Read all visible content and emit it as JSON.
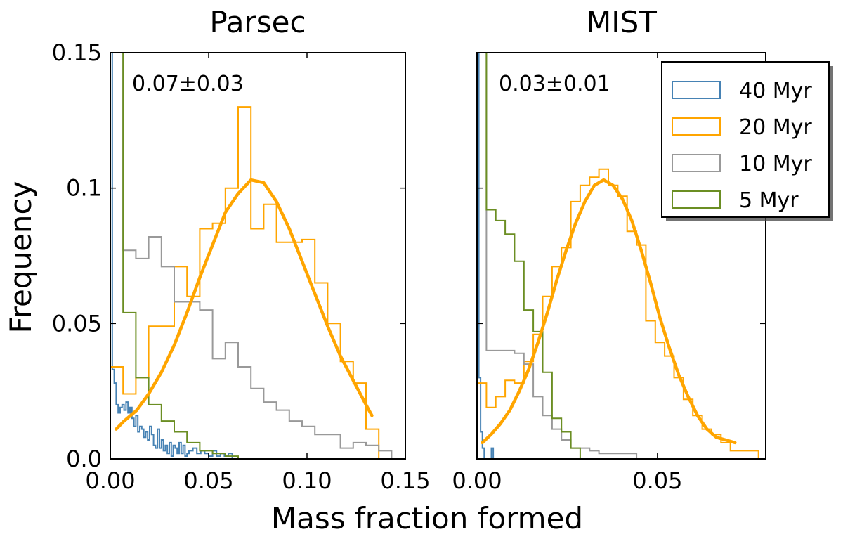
{
  "figure": {
    "ylabel": "Frequency",
    "xlabel": "Mass fraction formed"
  },
  "legend": {
    "placement": "top-right",
    "entries": [
      {
        "label": "40 Myr",
        "color": "#4682b4"
      },
      {
        "label": "20 Myr",
        "color": "#ffa500"
      },
      {
        "label": "10 Myr",
        "color": "#999999"
      },
      {
        "label": "5 Myr",
        "color": "#6b8e23"
      }
    ]
  },
  "chart_data": [
    {
      "type": "histogram",
      "title": "Parsec",
      "annotation": "0.07±0.03",
      "xlim": [
        0.0,
        0.15
      ],
      "ylim": [
        0.0,
        0.15
      ],
      "xticks": [
        0.0,
        0.05,
        0.1,
        0.15
      ],
      "xtick_labels": [
        "0.00",
        "0.05",
        "0.10",
        "0.15"
      ],
      "yticks": [
        0.0,
        0.05,
        0.1,
        0.15
      ],
      "ytick_labels": [
        "0.0",
        "0.05",
        "0.1",
        "0.15"
      ],
      "series": [
        {
          "name": "40 Myr",
          "color": "#4682b4",
          "edges": [
            0.0,
            0.001,
            0.002,
            0.003,
            0.004,
            0.005,
            0.006,
            0.007,
            0.008,
            0.009,
            0.01,
            0.011,
            0.012,
            0.013,
            0.014,
            0.015,
            0.016,
            0.017,
            0.018,
            0.019,
            0.02,
            0.021,
            0.022,
            0.023,
            0.024,
            0.025,
            0.026,
            0.027,
            0.028,
            0.029,
            0.03,
            0.031,
            0.032,
            0.033,
            0.034,
            0.035,
            0.036,
            0.037,
            0.038,
            0.039,
            0.04,
            0.042,
            0.044,
            0.046,
            0.048,
            0.05,
            0.052,
            0.054,
            0.056,
            0.058,
            0.06,
            0.062
          ],
          "values": [
            0.15,
            0.033,
            0.028,
            0.02,
            0.017,
            0.019,
            0.02,
            0.018,
            0.021,
            0.017,
            0.019,
            0.015,
            0.012,
            0.016,
            0.01,
            0.012,
            0.011,
            0.008,
            0.01,
            0.007,
            0.012,
            0.009,
            0.005,
            0.004,
            0.011,
            0.004,
            0.007,
            0.003,
            0.005,
            0.002,
            0.006,
            0.001,
            0.005,
            0.004,
            0.002,
            0.006,
            0.002,
            0.005,
            0.001,
            0.002,
            0.003,
            0.004,
            0.002,
            0.003,
            0.002,
            0.001,
            0.003,
            0.001,
            0.002,
            0.001,
            0.002
          ]
        },
        {
          "name": "20 Myr",
          "color": "#ffa500",
          "edges": [
            0.0,
            0.0065,
            0.013,
            0.0195,
            0.026,
            0.0325,
            0.039,
            0.0455,
            0.052,
            0.0585,
            0.065,
            0.0715,
            0.078,
            0.0845,
            0.091,
            0.0975,
            0.104,
            0.1105,
            0.117,
            0.1235,
            0.13,
            0.1365,
            0.143
          ],
          "values": [
            0.034,
            0.024,
            0.03,
            0.049,
            0.049,
            0.071,
            0.06,
            0.085,
            0.087,
            0.1,
            0.13,
            0.085,
            0.094,
            0.08,
            0.08,
            0.081,
            0.065,
            0.05,
            0.036,
            0.028,
            0.011,
            0.0
          ]
        },
        {
          "name": "10 Myr",
          "color": "#999999",
          "edges": [
            0.0,
            0.0065,
            0.013,
            0.0195,
            0.026,
            0.0325,
            0.039,
            0.0455,
            0.052,
            0.0585,
            0.065,
            0.0715,
            0.078,
            0.0845,
            0.091,
            0.0975,
            0.104,
            0.1105,
            0.117,
            0.1235,
            0.13,
            0.1365,
            0.143
          ],
          "values": [
            0.15,
            0.077,
            0.074,
            0.082,
            0.071,
            0.058,
            0.058,
            0.055,
            0.037,
            0.043,
            0.034,
            0.026,
            0.021,
            0.018,
            0.014,
            0.012,
            0.009,
            0.009,
            0.004,
            0.006,
            0.005,
            0.003
          ]
        },
        {
          "name": "5 Myr",
          "color": "#6b8e23",
          "edges": [
            0.0,
            0.003,
            0.006,
            0.0065,
            0.013,
            0.0195,
            0.026,
            0.0325,
            0.039,
            0.0455,
            0.052,
            0.0585,
            0.065
          ],
          "values": [
            0.15,
            0.15,
            0.15,
            0.054,
            0.03,
            0.02,
            0.014,
            0.01,
            0.006,
            0.003,
            0.002,
            0.001
          ]
        }
      ],
      "fit": {
        "name": "20 Myr fit",
        "color": "#ffa500",
        "x": [
          0.003,
          0.007,
          0.0135,
          0.0195,
          0.026,
          0.0325,
          0.039,
          0.0455,
          0.052,
          0.0585,
          0.065,
          0.0715,
          0.078,
          0.0845,
          0.091,
          0.0975,
          0.104,
          0.1105,
          0.117,
          0.1235,
          0.13,
          0.133
        ],
        "y": [
          0.011,
          0.014,
          0.018,
          0.024,
          0.032,
          0.042,
          0.054,
          0.067,
          0.079,
          0.091,
          0.098,
          0.103,
          0.102,
          0.095,
          0.085,
          0.073,
          0.061,
          0.049,
          0.038,
          0.029,
          0.02,
          0.016
        ]
      }
    },
    {
      "type": "histogram",
      "title": "MIST",
      "annotation": "0.03±0.01",
      "xlim": [
        0.0,
        0.08
      ],
      "ylim": [
        0.0,
        0.15
      ],
      "xticks": [
        0.0,
        0.05
      ],
      "xtick_labels": [
        "0.00",
        "0.05"
      ],
      "yticks": [
        0.0,
        0.05,
        0.1,
        0.15
      ],
      "ytick_labels": [
        "",
        "",
        "",
        ""
      ],
      "series": [
        {
          "name": "40 Myr",
          "color": "#4682b4",
          "edges": [
            0.0,
            0.0005,
            0.001,
            0.0015,
            0.002,
            0.004,
            0.0045
          ],
          "values": [
            0.15,
            0.03,
            0.01,
            0.004,
            0.0,
            0.004
          ]
        },
        {
          "name": "20 Myr",
          "color": "#ffa500",
          "edges": [
            0.0,
            0.0026,
            0.0052,
            0.0078,
            0.0104,
            0.013,
            0.0156,
            0.0182,
            0.0208,
            0.0234,
            0.026,
            0.0286,
            0.0312,
            0.0338,
            0.0364,
            0.039,
            0.0416,
            0.0442,
            0.0468,
            0.0494,
            0.052,
            0.0546,
            0.0572,
            0.0598,
            0.0624,
            0.065,
            0.0676,
            0.0702,
            0.0728,
            0.0754,
            0.078
          ],
          "values": [
            0.028,
            0.019,
            0.023,
            0.029,
            0.028,
            0.036,
            0.046,
            0.06,
            0.071,
            0.078,
            0.095,
            0.101,
            0.104,
            0.107,
            0.101,
            0.097,
            0.084,
            0.079,
            0.051,
            0.043,
            0.038,
            0.03,
            0.022,
            0.016,
            0.011,
            0.009,
            0.006,
            0.003,
            0.003,
            0.003
          ]
        },
        {
          "name": "10 Myr",
          "color": "#999999",
          "edges": [
            0.0,
            0.0026,
            0.0052,
            0.0078,
            0.0104,
            0.013,
            0.0156,
            0.0182,
            0.0208,
            0.0234,
            0.026,
            0.0286,
            0.0312,
            0.0338,
            0.0364,
            0.039,
            0.0416,
            0.0442,
            0.0468
          ],
          "values": [
            0.15,
            0.04,
            0.04,
            0.04,
            0.039,
            0.035,
            0.023,
            0.016,
            0.011,
            0.007,
            0.004,
            0.004,
            0.003,
            0.002,
            0.002,
            0.002,
            0.002,
            0.0
          ]
        },
        {
          "name": "5 Myr",
          "color": "#6b8e23",
          "edges": [
            0.0,
            0.0026,
            0.0052,
            0.0078,
            0.0104,
            0.013,
            0.0156,
            0.0182,
            0.0208,
            0.0234,
            0.026,
            0.0286
          ],
          "values": [
            0.15,
            0.092,
            0.088,
            0.083,
            0.073,
            0.055,
            0.047,
            0.032,
            0.015,
            0.01,
            0.004
          ]
        }
      ],
      "fit": {
        "name": "20 Myr fit",
        "color": "#ffa500",
        "x": [
          0.0015,
          0.0039,
          0.0065,
          0.0091,
          0.0117,
          0.0143,
          0.0169,
          0.0195,
          0.0221,
          0.0247,
          0.0273,
          0.0299,
          0.0325,
          0.0351,
          0.0377,
          0.0403,
          0.0429,
          0.0455,
          0.0481,
          0.0507,
          0.0533,
          0.0559,
          0.0585,
          0.0611,
          0.0637,
          0.0663,
          0.0689,
          0.0715
        ],
        "y": [
          0.006,
          0.009,
          0.013,
          0.018,
          0.025,
          0.033,
          0.043,
          0.054,
          0.066,
          0.077,
          0.087,
          0.095,
          0.101,
          0.103,
          0.101,
          0.096,
          0.088,
          0.077,
          0.065,
          0.052,
          0.041,
          0.031,
          0.023,
          0.016,
          0.011,
          0.008,
          0.007,
          0.006
        ]
      }
    }
  ]
}
